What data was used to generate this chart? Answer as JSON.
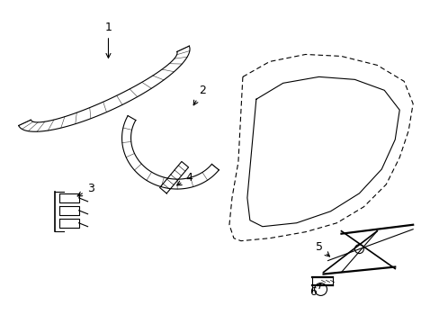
{
  "background_color": "#ffffff",
  "fig_width": 4.89,
  "fig_height": 3.6,
  "dpi": 100,
  "line_color": "#000000",
  "line_width": 0.8,
  "label_fontsize": 8
}
